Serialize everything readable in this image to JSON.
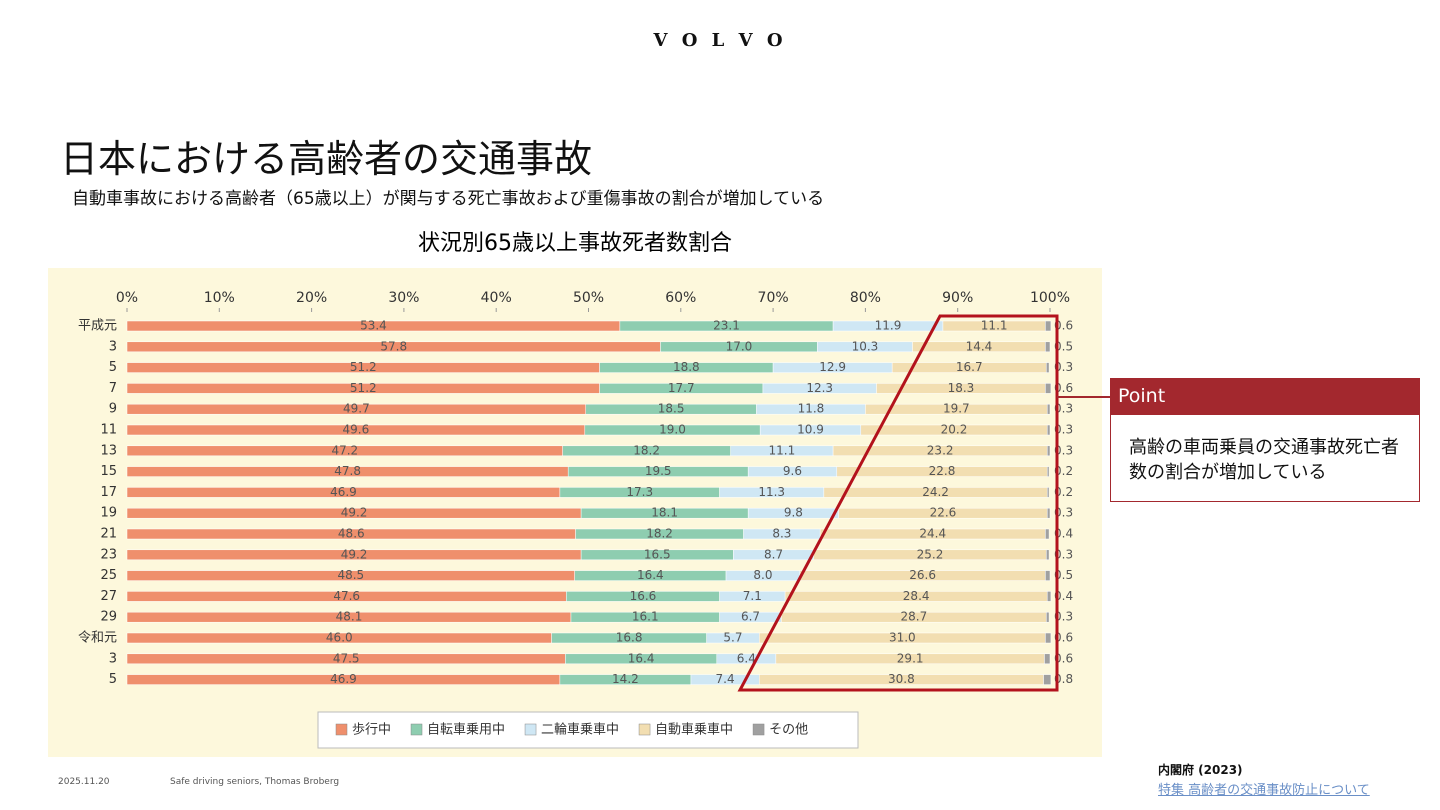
{
  "slide": {
    "logo": "V O L V O",
    "title": "日本における高齢者の交通事故",
    "subtitle": "自動車事故における高齢者（65歳以上）が関与する死亡事故および重傷事故の割合が増加している",
    "point_header": "Point",
    "point_text": "高齢の車両乗員の交通事故死亡者数の割合が増加している",
    "date": "2025.11.20",
    "footer": "Safe driving seniors, Thomas Broberg",
    "source": "内閣府 (2023)",
    "source_link": "特集 高齢者の交通事故防止について"
  },
  "chart_data": {
    "type": "stacked-barh",
    "title": "状況別65歳以上事故死者数割合",
    "categories": [
      "平成元",
      "3",
      "5",
      "7",
      "9",
      "11",
      "13",
      "15",
      "17",
      "19",
      "21",
      "23",
      "25",
      "27",
      "29",
      "令和元",
      "3",
      "5"
    ],
    "xlim": [
      0,
      100
    ],
    "xticks": [
      {
        "value": 0,
        "label": "0%"
      },
      {
        "value": 10,
        "label": "10%"
      },
      {
        "value": 20,
        "label": "20%"
      },
      {
        "value": 30,
        "label": "30%"
      },
      {
        "value": 40,
        "label": "40%"
      },
      {
        "value": 50,
        "label": "50%"
      },
      {
        "value": 60,
        "label": "60%"
      },
      {
        "value": 70,
        "label": "70%"
      },
      {
        "value": 80,
        "label": "80%"
      },
      {
        "value": 90,
        "label": "90%"
      },
      {
        "value": 100,
        "label": "100%"
      }
    ],
    "grid": false,
    "series": [
      {
        "name": "歩行中",
        "color": "#ef8f6c",
        "values": [
          53.4,
          57.8,
          51.2,
          51.2,
          49.7,
          49.6,
          47.2,
          47.8,
          46.9,
          49.2,
          48.6,
          49.2,
          48.5,
          47.6,
          48.1,
          46.0,
          47.5,
          46.9
        ],
        "value_labels": [
          "53.4",
          "57.8",
          "51.2",
          "51.2",
          "49.7",
          "49.6",
          "47.2",
          "47.8",
          "46.9",
          "49.2",
          "48.6",
          "49.2",
          "48.5",
          "47.6",
          "48.1",
          "46.0",
          "47.5",
          "46.9"
        ]
      },
      {
        "name": "自転車乗用中",
        "color": "#8ecdb0",
        "values": [
          23.1,
          17.0,
          18.8,
          17.7,
          18.5,
          19.0,
          18.2,
          19.5,
          17.3,
          18.1,
          18.2,
          16.5,
          16.4,
          16.6,
          16.1,
          16.8,
          16.4,
          14.2
        ],
        "value_labels": [
          "23.1",
          "17.0",
          "18.8",
          "17.7",
          "18.5",
          "19.0",
          "18.2",
          "19.5",
          "17.3",
          "18.1",
          "18.2",
          "16.5",
          "16.4",
          "16.6",
          "16.1",
          "16.8",
          "16.4",
          "14.2"
        ]
      },
      {
        "name": "二輪車乗車中",
        "color": "#cfe7f4",
        "values": [
          11.9,
          10.3,
          12.9,
          12.3,
          11.8,
          10.9,
          11.1,
          9.6,
          11.3,
          9.8,
          8.3,
          8.7,
          8.0,
          7.1,
          6.7,
          5.7,
          6.4,
          7.4
        ],
        "value_labels": [
          "11.9",
          "10.3",
          "12.9",
          "12.3",
          "11.8",
          "10.9",
          "11.1",
          "9.6",
          "11.3",
          "9.8",
          "8.3",
          "8.7",
          "8.0",
          "7.1",
          "6.7",
          "5.7",
          "6.4",
          "7.4"
        ]
      },
      {
        "name": "自動車乗車中",
        "color": "#f2deb1",
        "values": [
          11.1,
          14.4,
          16.7,
          18.3,
          19.7,
          20.2,
          23.2,
          22.8,
          24.2,
          22.6,
          24.4,
          25.2,
          26.6,
          28.4,
          28.7,
          31.0,
          29.1,
          30.8
        ],
        "value_labels": [
          "11.1",
          "14.4",
          "16.7",
          "18.3",
          "19.7",
          "20.2",
          "23.2",
          "22.8",
          "24.2",
          "22.6",
          "24.4",
          "25.2",
          "26.6",
          "28.4",
          "28.7",
          "31.0",
          "29.1",
          "30.8"
        ]
      },
      {
        "name": "その他",
        "color": "#a0a0a0",
        "values": [
          0.6,
          0.5,
          0.3,
          0.6,
          0.3,
          0.3,
          0.3,
          0.2,
          0.2,
          0.3,
          0.4,
          0.3,
          0.5,
          0.4,
          0.3,
          0.6,
          0.6,
          0.8
        ],
        "value_labels": [
          "0.6",
          "0.5",
          "0.3",
          "0.6",
          "0.3",
          "0.3",
          "0.3",
          "0.2",
          "0.2",
          "0.3",
          "0.4",
          "0.3",
          "0.5",
          "0.4",
          "0.3",
          "0.6",
          "0.6",
          "0.8"
        ]
      }
    ]
  }
}
